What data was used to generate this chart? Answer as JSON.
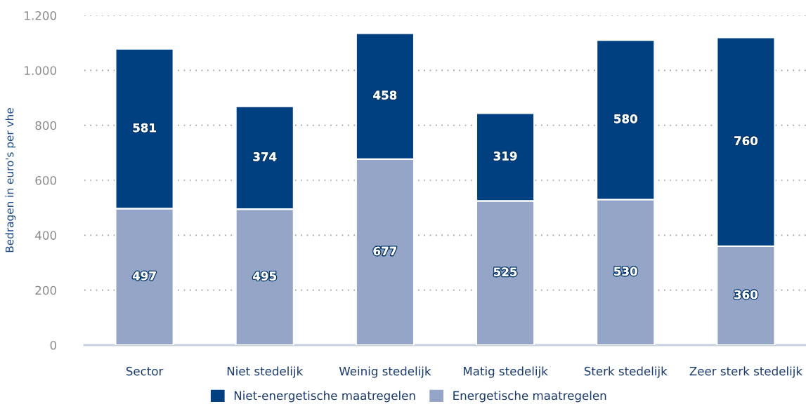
{
  "chart_data": {
    "type": "bar",
    "stacked": true,
    "ylabel": "Bedragen in euro's per vhe",
    "categories": [
      "Sector",
      "Niet stedelijk",
      "Weinig stedelijk",
      "Matig stedelijk",
      "Sterk stedelijk",
      "Zeer sterk stedelijk"
    ],
    "series": [
      {
        "name": "Energetische maatregelen",
        "color": "#94a5c8",
        "values": [
          497,
          495,
          677,
          525,
          530,
          360
        ]
      },
      {
        "name": "Niet-energetische maatregelen",
        "color": "#004080",
        "values": [
          581,
          374,
          458,
          319,
          580,
          760
        ]
      }
    ],
    "ylim": [
      0,
      1200
    ],
    "yticks": [
      0,
      200,
      400,
      600,
      800,
      {
        "value": 1000,
        "label": "1.000"
      },
      {
        "value": 1200,
        "label": "1.200"
      }
    ],
    "grid": "y",
    "legend": "bottom",
    "data_labels": true
  }
}
